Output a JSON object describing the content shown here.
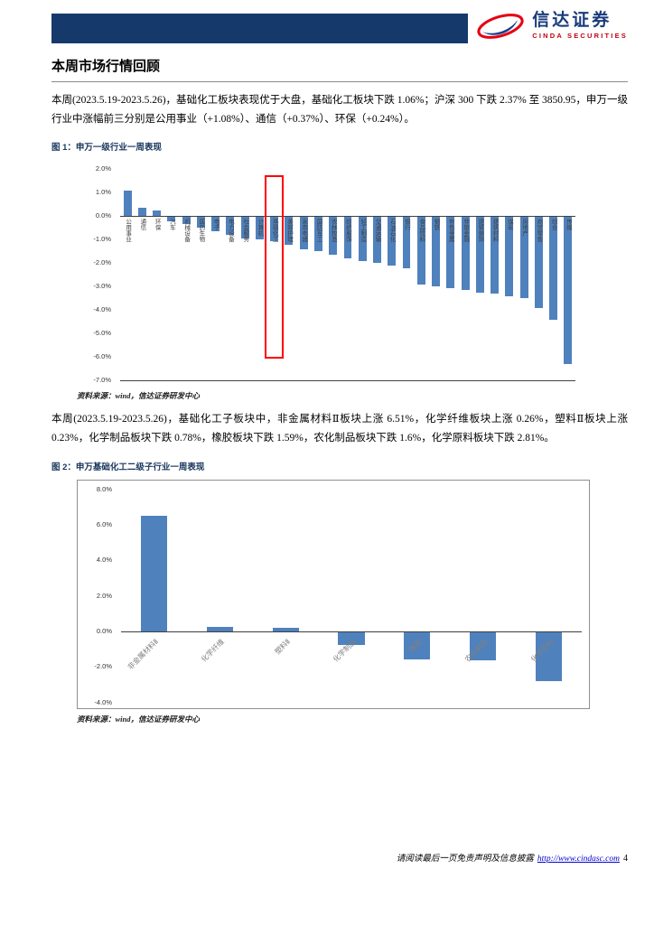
{
  "header": {
    "brand_cn": "信达证券",
    "brand_en": "CINDA SECURITIES"
  },
  "colors": {
    "header_bar": "#16396B",
    "bar_fill": "#4F81BD",
    "highlight_box": "#FF0000",
    "brand_red": "#E60012",
    "brand_blue": "#1A3B7C",
    "link": "#0000CC"
  },
  "page": {
    "section_title": "本周市场行情回顾",
    "para1": "本周(2023.5.19-2023.5.26)，基础化工板块表现优于大盘，基础化工板块下跌 1.06%；沪深 300 下跌 2.37% 至 3850.95，申万一级行业中涨幅前三分别是公用事业（+1.08%）、通信（+0.37%）、环保（+0.24%）。",
    "para2": "本周(2023.5.19-2023.5.26)，基础化工子板块中，非金属材料Ⅱ板块上涨 6.51%，化学纤维板块上涨 0.26%，塑料Ⅱ板块上涨 0.23%，化学制品板块下跌 0.78%，橡胶板块下跌 1.59%，农化制品板块下跌 1.6%，化学原料板块下跌 2.81%。",
    "fig1_caption": "图 1：申万一级行业一周表现",
    "fig2_caption": "图 2：申万基础化工二级子行业一周表现",
    "source_note": "资料来源：wind，信达证券研发中心",
    "footer_text": "请阅读最后一页免责声明及信息披露",
    "footer_link": "http://www.cindasc.com",
    "page_number": "4"
  },
  "chart_data": [
    {
      "type": "bar",
      "title": "申万一级行业一周表现",
      "categories": [
        "公用事业",
        "通信",
        "环保",
        "汽车",
        "机械设备",
        "医药生物",
        "电子",
        "电力设备",
        "社会服务",
        "计算机",
        "基础化工",
        "美容护理",
        "家用电器",
        "国防军工",
        "农林牧渔",
        "纺织服饰",
        "轻工制造",
        "交通运输",
        "石油石化",
        "银行",
        "食品饮料",
        "钢铁",
        "有色金属",
        "非银金融",
        "建筑装饰",
        "建筑材料",
        "煤炭",
        "房地产",
        "商贸零售",
        "综合",
        "传媒"
      ],
      "values": [
        1.08,
        0.37,
        0.24,
        -0.2,
        -0.35,
        -0.5,
        -0.65,
        -0.8,
        -0.95,
        -1.0,
        -1.06,
        -1.2,
        -1.4,
        -1.5,
        -1.65,
        -1.8,
        -1.9,
        -2.0,
        -2.1,
        -2.2,
        -2.9,
        -3.0,
        -3.05,
        -3.15,
        -3.25,
        -3.3,
        -3.4,
        -3.5,
        -3.9,
        -4.4,
        -6.3
      ],
      "unit": "%",
      "ylim": [
        -7,
        2
      ],
      "yticks": [
        2,
        1,
        0,
        -1,
        -2,
        -3,
        -4,
        -5,
        -6,
        -7
      ],
      "grid": false,
      "legend": "none",
      "bar_color": "#4F81BD",
      "bar_ratio": 0.55,
      "label_orientation": "vertical",
      "frame": "bottom",
      "highlight": {
        "index": 10,
        "label": "基础化工",
        "y_top": 1.75,
        "y_bottom": -6.05,
        "color": "#FF0000"
      }
    },
    {
      "type": "bar",
      "title": "申万基础化工二级子行业一周表现",
      "categories": [
        "非金属材料Ⅱ",
        "化学纤维",
        "塑料Ⅱ",
        "化学制品",
        "橡胶",
        "农化制品",
        "化学原料"
      ],
      "values": [
        6.51,
        0.26,
        0.23,
        -0.78,
        -1.59,
        -1.6,
        -2.81
      ],
      "unit": "%",
      "ylim": [
        -4,
        8
      ],
      "yticks": [
        8,
        6,
        4,
        2,
        0,
        -2,
        -4
      ],
      "grid": false,
      "legend": "none",
      "bar_color": "#4F81BD",
      "bar_ratio": 0.4,
      "label_orientation": "diagonal",
      "frame": "box"
    }
  ]
}
